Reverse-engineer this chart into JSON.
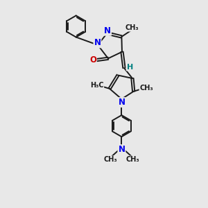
{
  "bg_color": "#e8e8e8",
  "bond_color": "#1a1a1a",
  "nitrogen_color": "#0000ee",
  "oxygen_color": "#cc0000",
  "hydrogen_color": "#008080",
  "lw": 1.4,
  "dbo": 0.055,
  "figsize": [
    3.0,
    3.0
  ],
  "dpi": 100,
  "xlim": [
    0.0,
    6.5
  ],
  "ylim": [
    -0.5,
    9.5
  ]
}
